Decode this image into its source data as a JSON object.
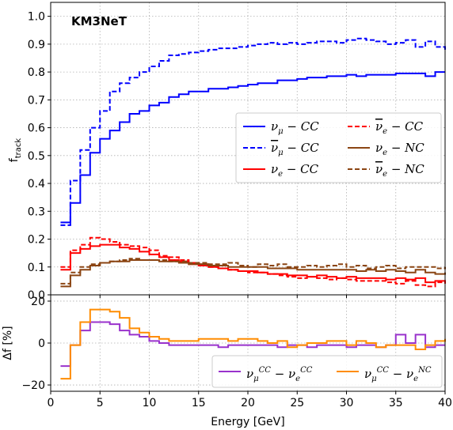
{
  "chart_data": [
    {
      "type": "line",
      "drawstyle": "steps",
      "watermark": "KM3NeT",
      "xlabel": "Energy [GeV]",
      "ylabel": "f",
      "ylabel_sub": "track",
      "xlim": [
        0,
        40
      ],
      "ylim": [
        0,
        1.05
      ],
      "xticks": [
        "0",
        "5",
        "10",
        "15",
        "20",
        "25",
        "30",
        "35",
        "40"
      ],
      "yticks": [
        "0.0",
        "0.1",
        "0.2",
        "0.3",
        "0.4",
        "0.5",
        "0.6",
        "0.7",
        "0.8",
        "0.9",
        "1.0"
      ],
      "grid": true,
      "legend_position": "center-right",
      "x": [
        1,
        2,
        3,
        4,
        5,
        6,
        7,
        8,
        9,
        10,
        11,
        12,
        13,
        14,
        15,
        16,
        17,
        18,
        19,
        20,
        21,
        22,
        23,
        24,
        25,
        26,
        27,
        28,
        29,
        30,
        31,
        32,
        33,
        34,
        35,
        36,
        37,
        38,
        39,
        40
      ],
      "series": [
        {
          "name_base": "ν",
          "name_sub": "μ",
          "name_suffix": " − CC",
          "bar": false,
          "color": "#0000ff",
          "dash": "solid",
          "values": [
            0.26,
            0.33,
            0.43,
            0.51,
            0.56,
            0.59,
            0.62,
            0.65,
            0.66,
            0.68,
            0.69,
            0.71,
            0.72,
            0.73,
            0.73,
            0.74,
            0.74,
            0.745,
            0.75,
            0.755,
            0.76,
            0.76,
            0.77,
            0.77,
            0.775,
            0.78,
            0.78,
            0.785,
            0.785,
            0.79,
            0.785,
            0.79,
            0.79,
            0.79,
            0.795,
            0.795,
            0.795,
            0.785,
            0.8,
            0.8
          ]
        },
        {
          "name_base": "ν",
          "name_sub": "μ",
          "name_suffix": " − CC",
          "bar": true,
          "color": "#0000ff",
          "dash": "dashed",
          "values": [
            0.25,
            0.41,
            0.52,
            0.6,
            0.66,
            0.73,
            0.76,
            0.78,
            0.8,
            0.82,
            0.84,
            0.86,
            0.865,
            0.87,
            0.875,
            0.88,
            0.885,
            0.885,
            0.89,
            0.895,
            0.9,
            0.905,
            0.9,
            0.905,
            0.9,
            0.905,
            0.91,
            0.91,
            0.905,
            0.915,
            0.92,
            0.915,
            0.91,
            0.9,
            0.905,
            0.915,
            0.89,
            0.91,
            0.89,
            0.88
          ]
        },
        {
          "name_base": "ν",
          "name_sub": "e",
          "name_suffix": " − CC",
          "bar": false,
          "color": "#ff0000",
          "dash": "solid",
          "values": [
            0.09,
            0.15,
            0.165,
            0.175,
            0.18,
            0.18,
            0.17,
            0.165,
            0.155,
            0.145,
            0.135,
            0.125,
            0.12,
            0.11,
            0.105,
            0.1,
            0.095,
            0.09,
            0.085,
            0.085,
            0.08,
            0.075,
            0.075,
            0.07,
            0.07,
            0.065,
            0.07,
            0.065,
            0.06,
            0.065,
            0.06,
            0.06,
            0.06,
            0.055,
            0.06,
            0.055,
            0.06,
            0.045,
            0.05,
            0.045
          ]
        },
        {
          "name_base": "ν",
          "name_sub": "e",
          "name_suffix": " − CC",
          "bar": true,
          "color": "#ff0000",
          "dash": "dashed",
          "values": [
            0.1,
            0.16,
            0.18,
            0.205,
            0.2,
            0.19,
            0.18,
            0.175,
            0.17,
            0.16,
            0.14,
            0.135,
            0.125,
            0.115,
            0.11,
            0.1,
            0.095,
            0.09,
            0.085,
            0.08,
            0.08,
            0.075,
            0.07,
            0.065,
            0.06,
            0.065,
            0.06,
            0.055,
            0.06,
            0.055,
            0.05,
            0.05,
            0.05,
            0.045,
            0.04,
            0.05,
            0.035,
            0.03,
            0.045,
            0.04
          ]
        },
        {
          "name_base": "ν",
          "name_sub": "e",
          "name_suffix": " − NC",
          "bar": false,
          "color": "#8b4513",
          "dash": "solid",
          "values": [
            0.03,
            0.07,
            0.09,
            0.105,
            0.115,
            0.12,
            0.12,
            0.125,
            0.125,
            0.125,
            0.12,
            0.12,
            0.115,
            0.11,
            0.11,
            0.105,
            0.105,
            0.1,
            0.1,
            0.1,
            0.1,
            0.095,
            0.095,
            0.095,
            0.09,
            0.09,
            0.09,
            0.09,
            0.09,
            0.09,
            0.085,
            0.09,
            0.085,
            0.09,
            0.085,
            0.08,
            0.09,
            0.08,
            0.075,
            0.08
          ]
        },
        {
          "name_base": "ν",
          "name_sub": "e",
          "name_suffix": " − NC",
          "bar": true,
          "color": "#8b4513",
          "dash": "dashed",
          "values": [
            0.04,
            0.08,
            0.1,
            0.11,
            0.115,
            0.12,
            0.125,
            0.13,
            0.125,
            0.125,
            0.125,
            0.12,
            0.12,
            0.115,
            0.115,
            0.11,
            0.11,
            0.115,
            0.105,
            0.1,
            0.11,
            0.105,
            0.11,
            0.1,
            0.1,
            0.105,
            0.1,
            0.105,
            0.11,
            0.1,
            0.105,
            0.095,
            0.1,
            0.105,
            0.095,
            0.1,
            0.1,
            0.1,
            0.095,
            0.1
          ]
        }
      ]
    },
    {
      "type": "line",
      "drawstyle": "steps",
      "xlabel": "Energy [GeV]",
      "ylabel": "Δf [%]",
      "xlim": [
        0,
        40
      ],
      "ylim": [
        -23,
        23
      ],
      "yticks": [
        "−20",
        "0",
        "20"
      ],
      "ytick_values": [
        -20,
        0,
        20
      ],
      "grid": true,
      "legend_position": "bottom",
      "x": [
        1,
        2,
        3,
        4,
        5,
        6,
        7,
        8,
        9,
        10,
        11,
        12,
        13,
        14,
        15,
        16,
        17,
        18,
        19,
        20,
        21,
        22,
        23,
        24,
        25,
        26,
        27,
        28,
        29,
        30,
        31,
        32,
        33,
        34,
        35,
        36,
        37,
        38,
        39,
        40
      ],
      "series": [
        {
          "name_left": "ν",
          "name_left_sub": "μ",
          "name_right": "ν",
          "name_right_sub": "e",
          "name_sup": "CC",
          "name_right_sup": "CC",
          "color": "#9932cc",
          "values": [
            -11,
            -1,
            6,
            10,
            10,
            9,
            6,
            4,
            3,
            1,
            0,
            -1,
            -1,
            -1,
            -1,
            -1,
            -2,
            -1,
            -1,
            -1,
            -1,
            -1,
            -2,
            -1,
            -1,
            -2,
            -1,
            -1,
            -1,
            -2,
            -1,
            -1,
            -2,
            -1,
            4,
            0,
            4,
            -2,
            -1,
            -1
          ]
        },
        {
          "name_left": "ν",
          "name_left_sub": "μ",
          "name_right": "ν",
          "name_right_sub": "e",
          "name_sup": "CC",
          "name_right_sup": "NC",
          "color": "#ff8c00",
          "values": [
            -17,
            -1,
            10,
            16,
            16,
            15,
            12,
            7,
            5,
            3,
            2,
            1,
            1,
            1,
            2,
            2,
            2,
            1,
            2,
            2,
            1,
            0,
            1,
            -2,
            -1,
            0,
            0,
            1,
            1,
            -1,
            1,
            0,
            -2,
            -1,
            -1,
            -1,
            -3,
            -1,
            1,
            2
          ]
        }
      ]
    }
  ]
}
